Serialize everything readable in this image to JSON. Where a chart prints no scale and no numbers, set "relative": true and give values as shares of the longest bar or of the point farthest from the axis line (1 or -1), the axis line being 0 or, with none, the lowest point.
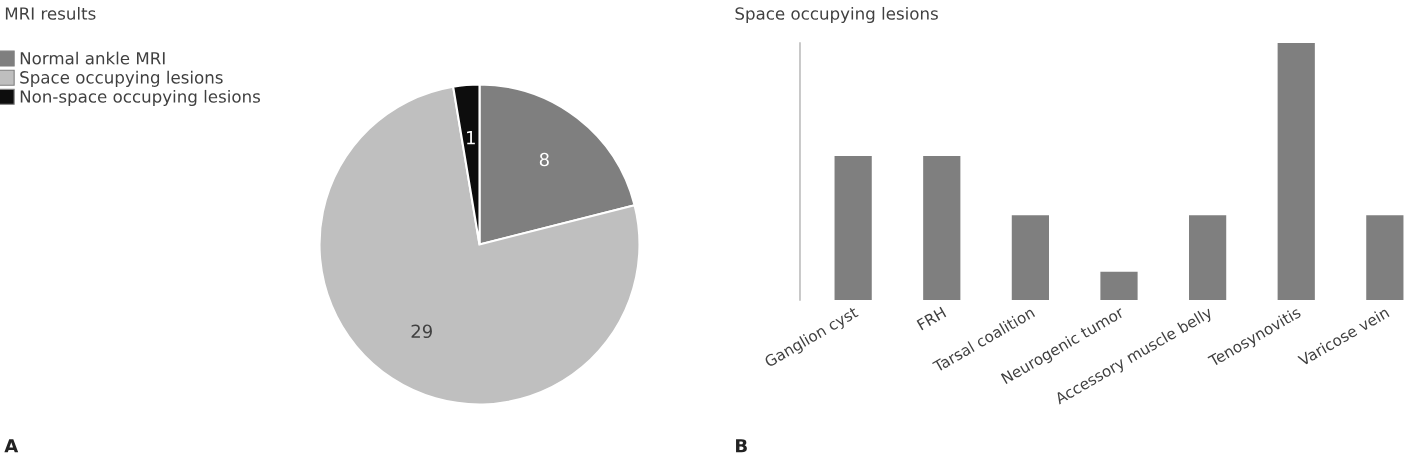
{
  "chart_data": [
    {
      "type": "pie",
      "title": "MRI results",
      "categories": [
        "Normal ankle MRI",
        "Space occupying lesions",
        "Non-space occupying lesions"
      ],
      "values": [
        8,
        29,
        1
      ],
      "colors": [
        "#7f7f7f",
        "#bfbfbf",
        "#0d0d0d"
      ],
      "data_labels": true,
      "legend": "top left",
      "annotations": [
        "A"
      ]
    },
    {
      "type": "bar",
      "title": "Space occupying lesions",
      "categories": [
        "Ganglion cyst",
        "FRH",
        "Tarsal coalition",
        "Neurogenic tumor",
        "Accessory muscle belly",
        "Tenosynovitis",
        "Varicose vein"
      ],
      "values": [
        0.56,
        0.56,
        0.33,
        0.11,
        0.33,
        1,
        0.33
      ],
      "color": "#7f7f7f",
      "relative": true,
      "annotations": [
        "B"
      ]
    }
  ]
}
